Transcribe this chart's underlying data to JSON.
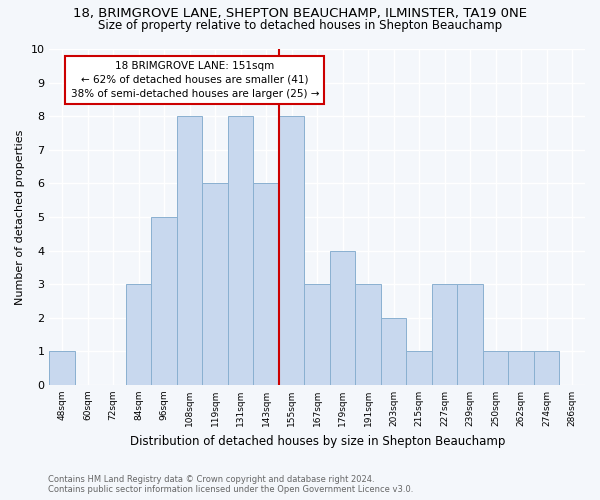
{
  "title1": "18, BRIMGROVE LANE, SHEPTON BEAUCHAMP, ILMINSTER, TA19 0NE",
  "title2": "Size of property relative to detached houses in Shepton Beauchamp",
  "xlabel": "Distribution of detached houses by size in Shepton Beauchamp",
  "ylabel": "Number of detached properties",
  "categories": [
    "48sqm",
    "60sqm",
    "72sqm",
    "84sqm",
    "96sqm",
    "108sqm",
    "119sqm",
    "131sqm",
    "143sqm",
    "155sqm",
    "167sqm",
    "179sqm",
    "191sqm",
    "203sqm",
    "215sqm",
    "227sqm",
    "239sqm",
    "250sqm",
    "262sqm",
    "274sqm",
    "286sqm"
  ],
  "values": [
    1,
    0,
    0,
    3,
    5,
    8,
    6,
    8,
    6,
    8,
    3,
    4,
    3,
    2,
    1,
    3,
    3,
    1,
    1,
    1,
    0
  ],
  "bar_color": "#c8d8ee",
  "bar_edge_color": "#8ab0d0",
  "vline_color": "#cc0000",
  "annotation_line1": "18 BRIMGROVE LANE: 151sqm",
  "annotation_line2": "← 62% of detached houses are smaller (41)",
  "annotation_line3": "38% of semi-detached houses are larger (25) →",
  "annotation_box_color": "#cc0000",
  "ylim": [
    0,
    10
  ],
  "yticks": [
    0,
    1,
    2,
    3,
    4,
    5,
    6,
    7,
    8,
    9,
    10
  ],
  "footnote1": "Contains HM Land Registry data © Crown copyright and database right 2024.",
  "footnote2": "Contains public sector information licensed under the Open Government Licence v3.0.",
  "bg_color": "#f4f7fb",
  "plot_bg_color": "#f4f7fb",
  "grid_color": "#ffffff",
  "title1_fontsize": 9.5,
  "title2_fontsize": 8.5,
  "vline_index": 8.5
}
